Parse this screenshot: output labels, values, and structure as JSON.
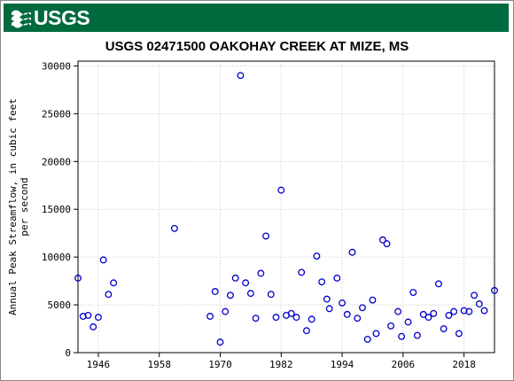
{
  "header": {
    "logo_text": "USGS",
    "logo_icon": "usgs-wave-icon",
    "banner_color": "#006a3f"
  },
  "chart_data": {
    "type": "scatter",
    "title": "USGS 02471500 OAKOHAY CREEK AT MIZE, MS",
    "xlabel": "",
    "ylabel_lines": [
      "Annual Peak Streamflow, in cubic feet",
      "per second"
    ],
    "xlim": [
      1942,
      2024
    ],
    "ylim": [
      0,
      30500
    ],
    "xticks": [
      1946,
      1958,
      1970,
      1982,
      1994,
      2006,
      2018
    ],
    "yticks": [
      0,
      5000,
      10000,
      15000,
      20000,
      25000,
      30000
    ],
    "grid": true,
    "marker_color": "#0000cc",
    "series": [
      {
        "points": [
          [
            1942,
            7800
          ],
          [
            1943,
            3800
          ],
          [
            1944,
            3900
          ],
          [
            1945,
            2700
          ],
          [
            1946,
            3700
          ],
          [
            1947,
            9700
          ],
          [
            1948,
            6100
          ],
          [
            1949,
            7300
          ],
          [
            1961,
            13000
          ],
          [
            1968,
            3800
          ],
          [
            1969,
            6400
          ],
          [
            1970,
            1100
          ],
          [
            1971,
            4300
          ],
          [
            1972,
            6000
          ],
          [
            1973,
            7800
          ],
          [
            1974,
            29000
          ],
          [
            1975,
            7300
          ],
          [
            1976,
            6200
          ],
          [
            1977,
            3600
          ],
          [
            1978,
            8300
          ],
          [
            1979,
            12200
          ],
          [
            1980,
            6100
          ],
          [
            1981,
            3700
          ],
          [
            1982,
            17000
          ],
          [
            1983,
            3900
          ],
          [
            1984,
            4100
          ],
          [
            1985,
            3700
          ],
          [
            1986,
            8400
          ],
          [
            1987,
            2300
          ],
          [
            1988,
            3500
          ],
          [
            1989,
            10100
          ],
          [
            1990,
            7400
          ],
          [
            1991,
            5600
          ],
          [
            1991.5,
            4600
          ],
          [
            1993,
            7800
          ],
          [
            1994,
            5200
          ],
          [
            1995,
            4000
          ],
          [
            1996,
            10500
          ],
          [
            1997,
            3600
          ],
          [
            1998,
            4700
          ],
          [
            1999,
            1400
          ],
          [
            2000,
            5500
          ],
          [
            2000.7,
            2000
          ],
          [
            2002,
            11800
          ],
          [
            2002.8,
            11400
          ],
          [
            2003.6,
            2800
          ],
          [
            2005,
            4300
          ],
          [
            2005.7,
            1700
          ],
          [
            2007,
            3200
          ],
          [
            2008,
            6300
          ],
          [
            2008.8,
            1800
          ],
          [
            2010,
            4000
          ],
          [
            2011,
            3700
          ],
          [
            2012,
            4100
          ],
          [
            2013,
            7200
          ],
          [
            2014,
            2500
          ],
          [
            2015,
            3900
          ],
          [
            2016,
            4300
          ],
          [
            2017,
            2000
          ],
          [
            2018,
            4400
          ],
          [
            2019,
            4300
          ],
          [
            2020,
            6000
          ],
          [
            2021,
            5100
          ],
          [
            2022,
            4400
          ],
          [
            2024,
            6500
          ]
        ]
      }
    ]
  }
}
